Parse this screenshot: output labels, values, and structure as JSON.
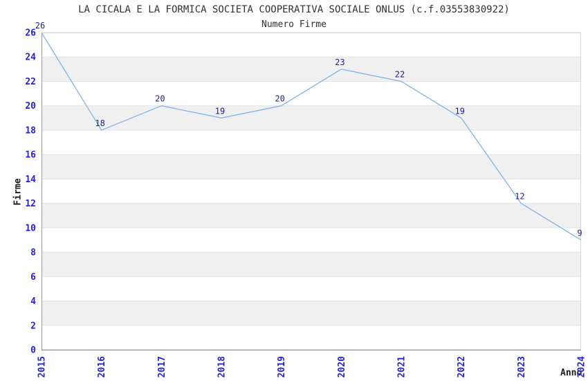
{
  "chart_data": {
    "type": "line",
    "title": "LA CICALA E LA FORMICA SOCIETA COOPERATIVA SOCIALE ONLUS (c.f.03553830922)",
    "subtitle": "Numero Firme",
    "xlabel": "Anno",
    "ylabel": "Firme",
    "categories": [
      "2015",
      "2016",
      "2017",
      "2018",
      "2019",
      "2020",
      "2021",
      "2022",
      "2023",
      "2024"
    ],
    "values": [
      26,
      18,
      20,
      19,
      20,
      23,
      22,
      19,
      12,
      9
    ],
    "ylim": [
      0,
      26
    ],
    "ytick_step": 2,
    "legend": "none",
    "grid": "horizontal-bands",
    "point_labels_visible": true,
    "colors": {
      "line": "#7EB2E8",
      "tick_label": "#2222DD",
      "value_label": "#202088",
      "band": "#F0F0F0",
      "grid": "#E2E2E2",
      "axis": "#999999",
      "border": "#D6D6D6",
      "text": "#303030"
    }
  }
}
